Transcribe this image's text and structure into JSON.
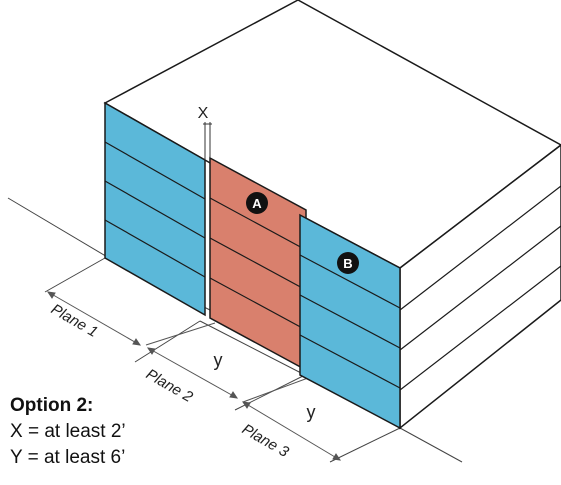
{
  "labels": {
    "x_dim": "X",
    "y_dim_1": "y",
    "y_dim_2": "y",
    "marker_a": "A",
    "marker_b": "B",
    "plane_1": "Plane 1",
    "plane_2": "Plane 2",
    "plane_3": "Plane 3"
  },
  "caption": {
    "title": "Option 2:",
    "line_1": "X = at least 2’",
    "line_2": "Y = at least 6’"
  },
  "colors": {
    "blue_facade": "#5bb8d9",
    "red_facade": "#d9806d",
    "outline": "#1a1a1a",
    "marker_fill": "#111111",
    "marker_text": "#ffffff"
  }
}
